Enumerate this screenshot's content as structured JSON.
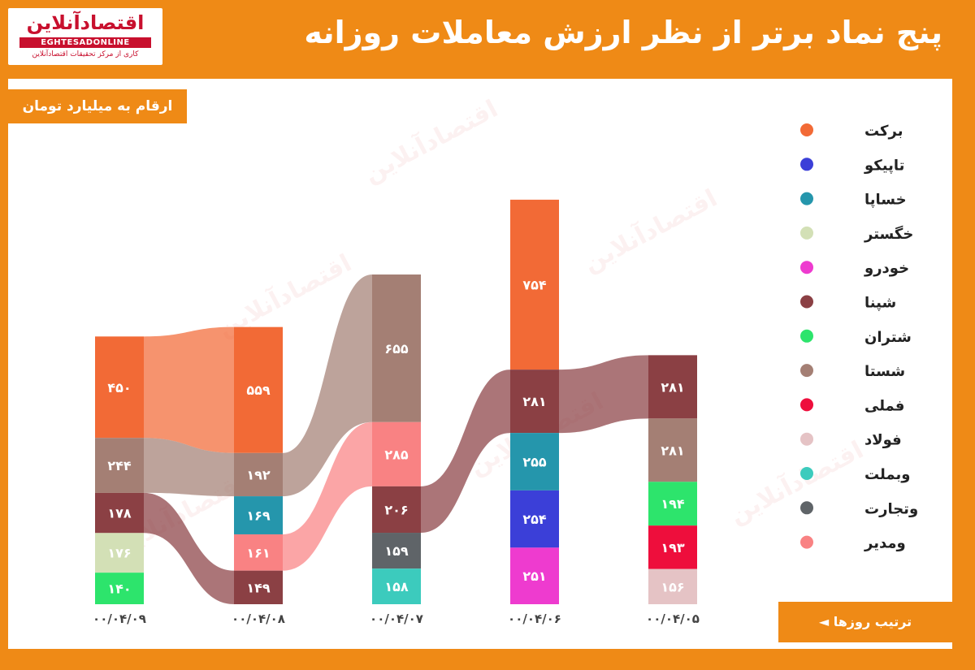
{
  "brand": {
    "name": "اقتصادآنلاین",
    "latin": "EGHTESADONLINE",
    "tagline": "کاری از مرکز تحقیقات اقتصادآنلاین"
  },
  "title": "پنج نماد برتر از نظر ارزش معاملات روزانه",
  "units_label": "ارقام به میلیارد تومان",
  "order_label": "ترتیب روزها ◄",
  "chart_data": {
    "type": "bar",
    "title": "پنج نماد برتر از نظر ارزش معاملات روزانه",
    "ylabel": "ارقام به میلیارد تومان",
    "categories": [
      "۰۰/۰۴/۰۹",
      "۰۰/۰۴/۰۸",
      "۰۰/۰۴/۰۷",
      "۰۰/۰۴/۰۶",
      "۰۰/۰۴/۰۵"
    ],
    "series": [
      {
        "name": "برکت",
        "color": "#f26a36",
        "values": [
          450,
          559,
          null,
          754,
          null
        ]
      },
      {
        "name": "تاپیکو",
        "color": "#3b3fd8",
        "values": [
          null,
          null,
          null,
          254,
          null
        ]
      },
      {
        "name": "خساپا",
        "color": "#2596ac",
        "values": [
          null,
          169,
          null,
          255,
          null
        ]
      },
      {
        "name": "خگستر",
        "color": "#d3e0b6",
        "values": [
          176,
          null,
          null,
          null,
          null
        ]
      },
      {
        "name": "خودرو",
        "color": "#ee3bcf",
        "values": [
          null,
          null,
          null,
          251,
          null
        ]
      },
      {
        "name": "شپنا",
        "color": "#8b4044",
        "values": [
          178,
          149,
          206,
          281,
          281
        ]
      },
      {
        "name": "شتران",
        "color": "#2de46c",
        "values": [
          140,
          null,
          null,
          null,
          194
        ]
      },
      {
        "name": "شستا",
        "color": "#a47f74",
        "values": [
          244,
          192,
          655,
          null,
          281
        ]
      },
      {
        "name": "فملی",
        "color": "#ee0e3c",
        "values": [
          null,
          null,
          null,
          null,
          193
        ]
      },
      {
        "name": "فولاد",
        "color": "#e5c3c5",
        "values": [
          null,
          null,
          null,
          null,
          156
        ]
      },
      {
        "name": "وبملت",
        "color": "#3ccbbd",
        "values": [
          null,
          null,
          158,
          null,
          null
        ]
      },
      {
        "name": "وتجارت",
        "color": "#5f6468",
        "values": [
          null,
          null,
          159,
          null,
          null
        ]
      },
      {
        "name": "ومدیر",
        "color": "#f98283",
        "values": [
          null,
          161,
          285,
          null,
          null
        ]
      }
    ],
    "columns": [
      {
        "date": "۰۰/۰۴/۰۹",
        "stack": [
          {
            "name": "برکت",
            "value": 450,
            "label": "۴۵۰"
          },
          {
            "name": "شستا",
            "value": 244,
            "label": "۲۴۴"
          },
          {
            "name": "شپنا",
            "value": 178,
            "label": "۱۷۸"
          },
          {
            "name": "خگستر",
            "value": 176,
            "label": "۱۷۶"
          },
          {
            "name": "شتران",
            "value": 140,
            "label": "۱۴۰"
          }
        ]
      },
      {
        "date": "۰۰/۰۴/۰۸",
        "stack": [
          {
            "name": "برکت",
            "value": 559,
            "label": "۵۵۹"
          },
          {
            "name": "شستا",
            "value": 192,
            "label": "۱۹۲"
          },
          {
            "name": "خساپا",
            "value": 169,
            "label": "۱۶۹"
          },
          {
            "name": "ومدیر",
            "value": 161,
            "label": "۱۶۱"
          },
          {
            "name": "شپنا",
            "value": 149,
            "label": "۱۴۹"
          }
        ]
      },
      {
        "date": "۰۰/۰۴/۰۷",
        "stack": [
          {
            "name": "شستا",
            "value": 655,
            "label": "۶۵۵"
          },
          {
            "name": "ومدیر",
            "value": 285,
            "label": "۲۸۵"
          },
          {
            "name": "شپنا",
            "value": 206,
            "label": "۲۰۶"
          },
          {
            "name": "وتجارت",
            "value": 159,
            "label": "۱۵۹"
          },
          {
            "name": "وبملت",
            "value": 158,
            "label": "۱۵۸"
          }
        ]
      },
      {
        "date": "۰۰/۰۴/۰۶",
        "stack": [
          {
            "name": "برکت",
            "value": 754,
            "label": "۷۵۴"
          },
          {
            "name": "شپنا",
            "value": 281,
            "label": "۲۸۱"
          },
          {
            "name": "خساپا",
            "value": 255,
            "label": "۲۵۵"
          },
          {
            "name": "تاپیکو",
            "value": 254,
            "label": "۲۵۴"
          },
          {
            "name": "خودرو",
            "value": 251,
            "label": "۲۵۱"
          }
        ]
      },
      {
        "date": "۰۰/۰۴/۰۵",
        "stack": [
          {
            "name": "شپنا",
            "value": 281,
            "label": "۲۸۱"
          },
          {
            "name": "شستا",
            "value": 281,
            "label": "۲۸۱"
          },
          {
            "name": "شتران",
            "value": 194,
            "label": "۱۹۴"
          },
          {
            "name": "فملی",
            "value": 193,
            "label": "۱۹۳"
          },
          {
            "name": "فولاد",
            "value": 156,
            "label": "۱۵۶"
          }
        ]
      }
    ],
    "links": [
      {
        "name": "برکت",
        "from": 0,
        "to": 1
      },
      {
        "name": "شستا",
        "from": 0,
        "to": 1
      },
      {
        "name": "شپنا",
        "from": 0,
        "to": 1
      },
      {
        "name": "شستا",
        "from": 1,
        "to": 2
      },
      {
        "name": "ومدیر",
        "from": 1,
        "to": 2
      },
      {
        "name": "شپنا",
        "from": 2,
        "to": 3
      },
      {
        "name": "شپنا",
        "from": 3,
        "to": 4
      }
    ],
    "legend": [
      "برکت",
      "تاپیکو",
      "خساپا",
      "خگستر",
      "خودرو",
      "شپنا",
      "شتران",
      "شستا",
      "فملی",
      "فولاد",
      "وبملت",
      "وتجارت",
      "ومدیر"
    ],
    "legend_position": "right"
  }
}
